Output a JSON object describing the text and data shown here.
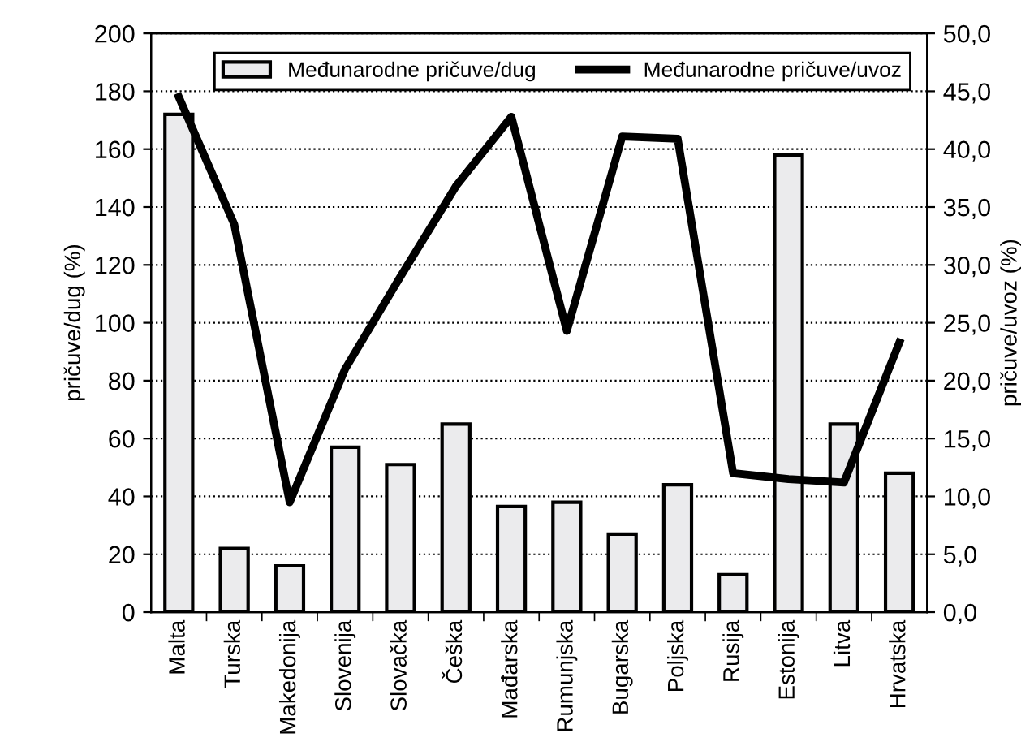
{
  "chart_data": {
    "type": "bar",
    "categories": [
      "Malta",
      "Turska",
      "Makedonija",
      "Slovenija",
      "Slovačka",
      "Češka",
      "Mađarska",
      "Rumunjska",
      "Bugarska",
      "Poljska",
      "Rusija",
      "Estonija",
      "Litva",
      "Hrvatska"
    ],
    "series": [
      {
        "name": "Međunarodne pričuve/dug",
        "color": "#ebebed",
        "values": [
          172,
          22,
          16,
          57,
          51,
          65,
          36.5,
          38,
          27,
          44,
          13,
          158,
          65,
          48
        ]
      },
      {
        "name": "Međunarodne pričuve/uvoz",
        "type": "line",
        "axis": "y2",
        "color": "#000000",
        "values": [
          44.5,
          33.5,
          9.5,
          21.0,
          29.0,
          36.8,
          42.8,
          24.3,
          41.1,
          40.9,
          12.0,
          11.5,
          11.2,
          23.3
        ]
      }
    ],
    "ylabel": "pričuve/dug (%)",
    "y2label": "pričuve/uvoz (%)",
    "ylim": [
      0,
      200
    ],
    "yticks": [
      0,
      20,
      40,
      60,
      80,
      100,
      120,
      140,
      160,
      180,
      200
    ],
    "y2lim": [
      0,
      50
    ],
    "y2ticks": [
      {
        "value": 0,
        "label": "0,0"
      },
      {
        "value": 5,
        "label": "5,0"
      },
      {
        "value": 10,
        "label": "10,0"
      },
      {
        "value": 15,
        "label": "15,0"
      },
      {
        "value": 20,
        "label": "20,0"
      },
      {
        "value": 25,
        "label": "25,0"
      },
      {
        "value": 30,
        "label": "30,0"
      },
      {
        "value": 35,
        "label": "35,0"
      },
      {
        "value": 40,
        "label": "40,0"
      },
      {
        "value": 45,
        "label": "45,0"
      },
      {
        "value": 50,
        "label": "50,0"
      }
    ],
    "grid": "y",
    "legend": "top",
    "line_style": "solid",
    "marker": "none"
  }
}
